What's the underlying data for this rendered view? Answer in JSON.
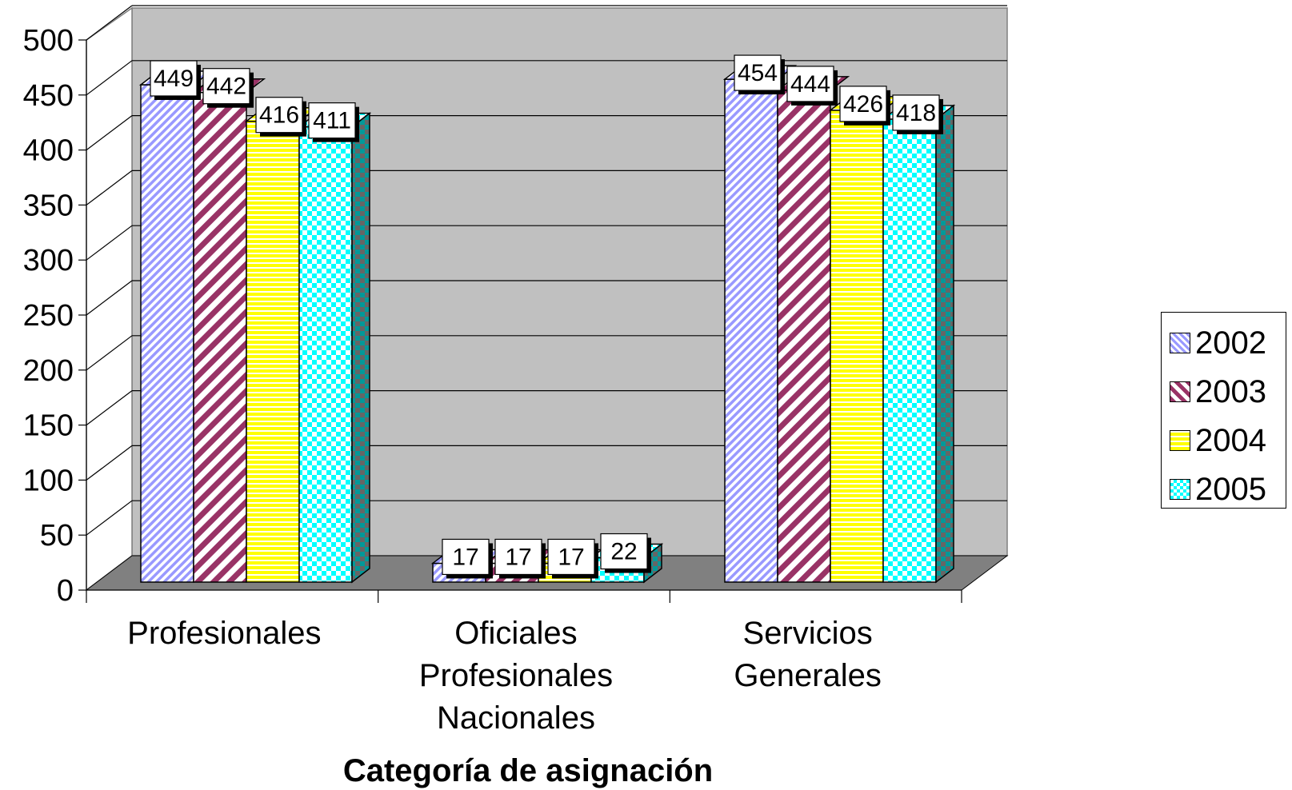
{
  "chart_data": {
    "type": "bar",
    "xlabel": "Categoría de asignación",
    "ylabel": "",
    "ylim": [
      0,
      500
    ],
    "yticks": [
      "0",
      "50",
      "100",
      "150",
      "200",
      "250",
      "300",
      "350",
      "400",
      "450",
      "500"
    ],
    "categories": [
      [
        "Profesionales"
      ],
      [
        "Oficiales",
        "Profesionales",
        "Nacionales"
      ],
      [
        "Servicios",
        "Generales"
      ]
    ],
    "series": [
      {
        "name": "2002",
        "values": [
          449,
          17,
          454
        ],
        "color": "#9999ff",
        "pattern": "diagonal-fine"
      },
      {
        "name": "2003",
        "values": [
          442,
          17,
          444
        ],
        "color": "#993366",
        "pattern": "diagonal-wide"
      },
      {
        "name": "2004",
        "values": [
          416,
          17,
          426
        ],
        "color": "#ffff00",
        "pattern": "horizontal-stripes"
      },
      {
        "name": "2005",
        "values": [
          411,
          22,
          418
        ],
        "color": "#00ffff",
        "pattern": "checker"
      }
    ],
    "grid": true,
    "legend": "right",
    "style": "3d-clustered-column"
  }
}
